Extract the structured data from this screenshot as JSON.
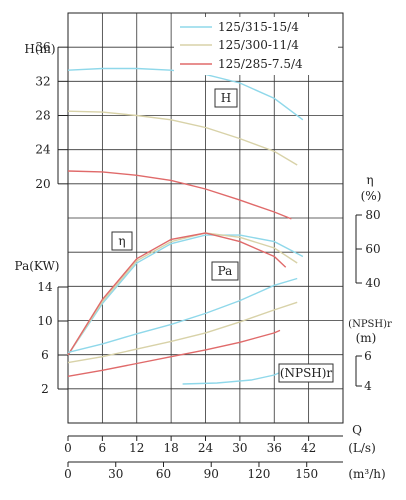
{
  "chart_data": {
    "type": "line",
    "legend": {
      "placement": "top-right",
      "entries": [
        {
          "name": "125/315-15/4",
          "color": "#8fd8ea"
        },
        {
          "name": "125/300-11/4",
          "color": "#d8d2a8"
        },
        {
          "name": "125/285-7.5/4",
          "color": "#e06a6a"
        }
      ]
    },
    "grid": true,
    "x_axes": {
      "flow_ls": {
        "label": "(L/s)",
        "name": "Q",
        "ticks": [
          "0",
          "6",
          "12",
          "18",
          "24",
          "30",
          "36",
          "42"
        ],
        "range": [
          0,
          48
        ]
      },
      "flow_m3h": {
        "label": "(m³/h)",
        "ticks": [
          "0",
          "30",
          "60",
          "90",
          "120",
          "150"
        ],
        "range": [
          0,
          172.8
        ]
      }
    },
    "y_axes": {
      "head": {
        "label": "H(m)",
        "ticks": [
          "36",
          "32",
          "28",
          "24",
          "20"
        ],
        "range": [
          16,
          40
        ]
      },
      "power": {
        "label": "Pa(KW)",
        "ticks": [
          "14",
          "10",
          "6",
          "2"
        ],
        "range": [
          0,
          18
        ]
      },
      "efficiency": {
        "label": "η",
        "unit": "(%)",
        "ticks": [
          "80",
          "60",
          "40"
        ],
        "range": [
          40,
          80
        ]
      },
      "npsh": {
        "label": "(NPSH)r",
        "unit": "(m)",
        "ticks": [
          "6",
          "4"
        ],
        "range": [
          4,
          6
        ]
      }
    },
    "curve_labels": {
      "head": "H",
      "efficiency": "η",
      "power": "Pa",
      "npsh": "(NPSH)r"
    },
    "head_series": [
      {
        "name": "125/315-15/4",
        "x": [
          0,
          6,
          12,
          18,
          24,
          30,
          36,
          41
        ],
        "y": [
          33.3,
          33.5,
          33.5,
          33.3,
          32.8,
          31.8,
          30.0,
          27.5
        ]
      },
      {
        "name": "125/300-11/4",
        "x": [
          0,
          6,
          12,
          18,
          24,
          30,
          36,
          40
        ],
        "y": [
          28.5,
          28.4,
          28.0,
          27.5,
          26.6,
          25.3,
          23.8,
          22.2
        ]
      },
      {
        "name": "125/285-7.5/4",
        "x": [
          0,
          6,
          12,
          18,
          24,
          30,
          36,
          39
        ],
        "y": [
          21.5,
          21.4,
          21.0,
          20.4,
          19.4,
          18.1,
          16.7,
          15.9
        ]
      }
    ],
    "efficiency_series": [
      {
        "name": "125/315-15/4",
        "x": [
          0,
          6,
          12,
          18,
          24,
          30,
          36,
          41
        ],
        "y": [
          20,
          44,
          63,
          72,
          76,
          76,
          73,
          66
        ]
      },
      {
        "name": "125/300-11/4",
        "x": [
          0,
          6,
          12,
          18,
          24,
          30,
          36,
          40
        ],
        "y": [
          20,
          45,
          64,
          73,
          77,
          75,
          70,
          63
        ]
      },
      {
        "name": "125/285-7.5/4",
        "x": [
          0,
          6,
          12,
          18,
          24,
          30,
          36,
          38
        ],
        "y": [
          20,
          46,
          65,
          74,
          77,
          73,
          66,
          61
        ]
      }
    ],
    "power_series": [
      {
        "name": "125/315-15/4",
        "x": [
          0,
          6,
          12,
          18,
          24,
          30,
          36,
          40
        ],
        "y": [
          6.3,
          7.3,
          8.5,
          9.6,
          10.9,
          12.4,
          14.2,
          15.0
        ]
      },
      {
        "name": "125/300-11/4",
        "x": [
          0,
          6,
          12,
          18,
          24,
          30,
          36,
          40
        ],
        "y": [
          5.1,
          5.8,
          6.7,
          7.6,
          8.6,
          9.9,
          11.3,
          12.2
        ]
      },
      {
        "name": "125/285-7.5/4",
        "x": [
          0,
          6,
          12,
          18,
          24,
          30,
          36,
          37
        ],
        "y": [
          3.5,
          4.2,
          5.0,
          5.8,
          6.6,
          7.5,
          8.6,
          8.9
        ]
      }
    ],
    "npsh_series": [
      {
        "name": "125/315-15/4",
        "x": [
          20,
          26,
          32,
          36,
          38
        ],
        "y": [
          3.8,
          3.85,
          4.0,
          4.25,
          4.5
        ]
      }
    ]
  }
}
